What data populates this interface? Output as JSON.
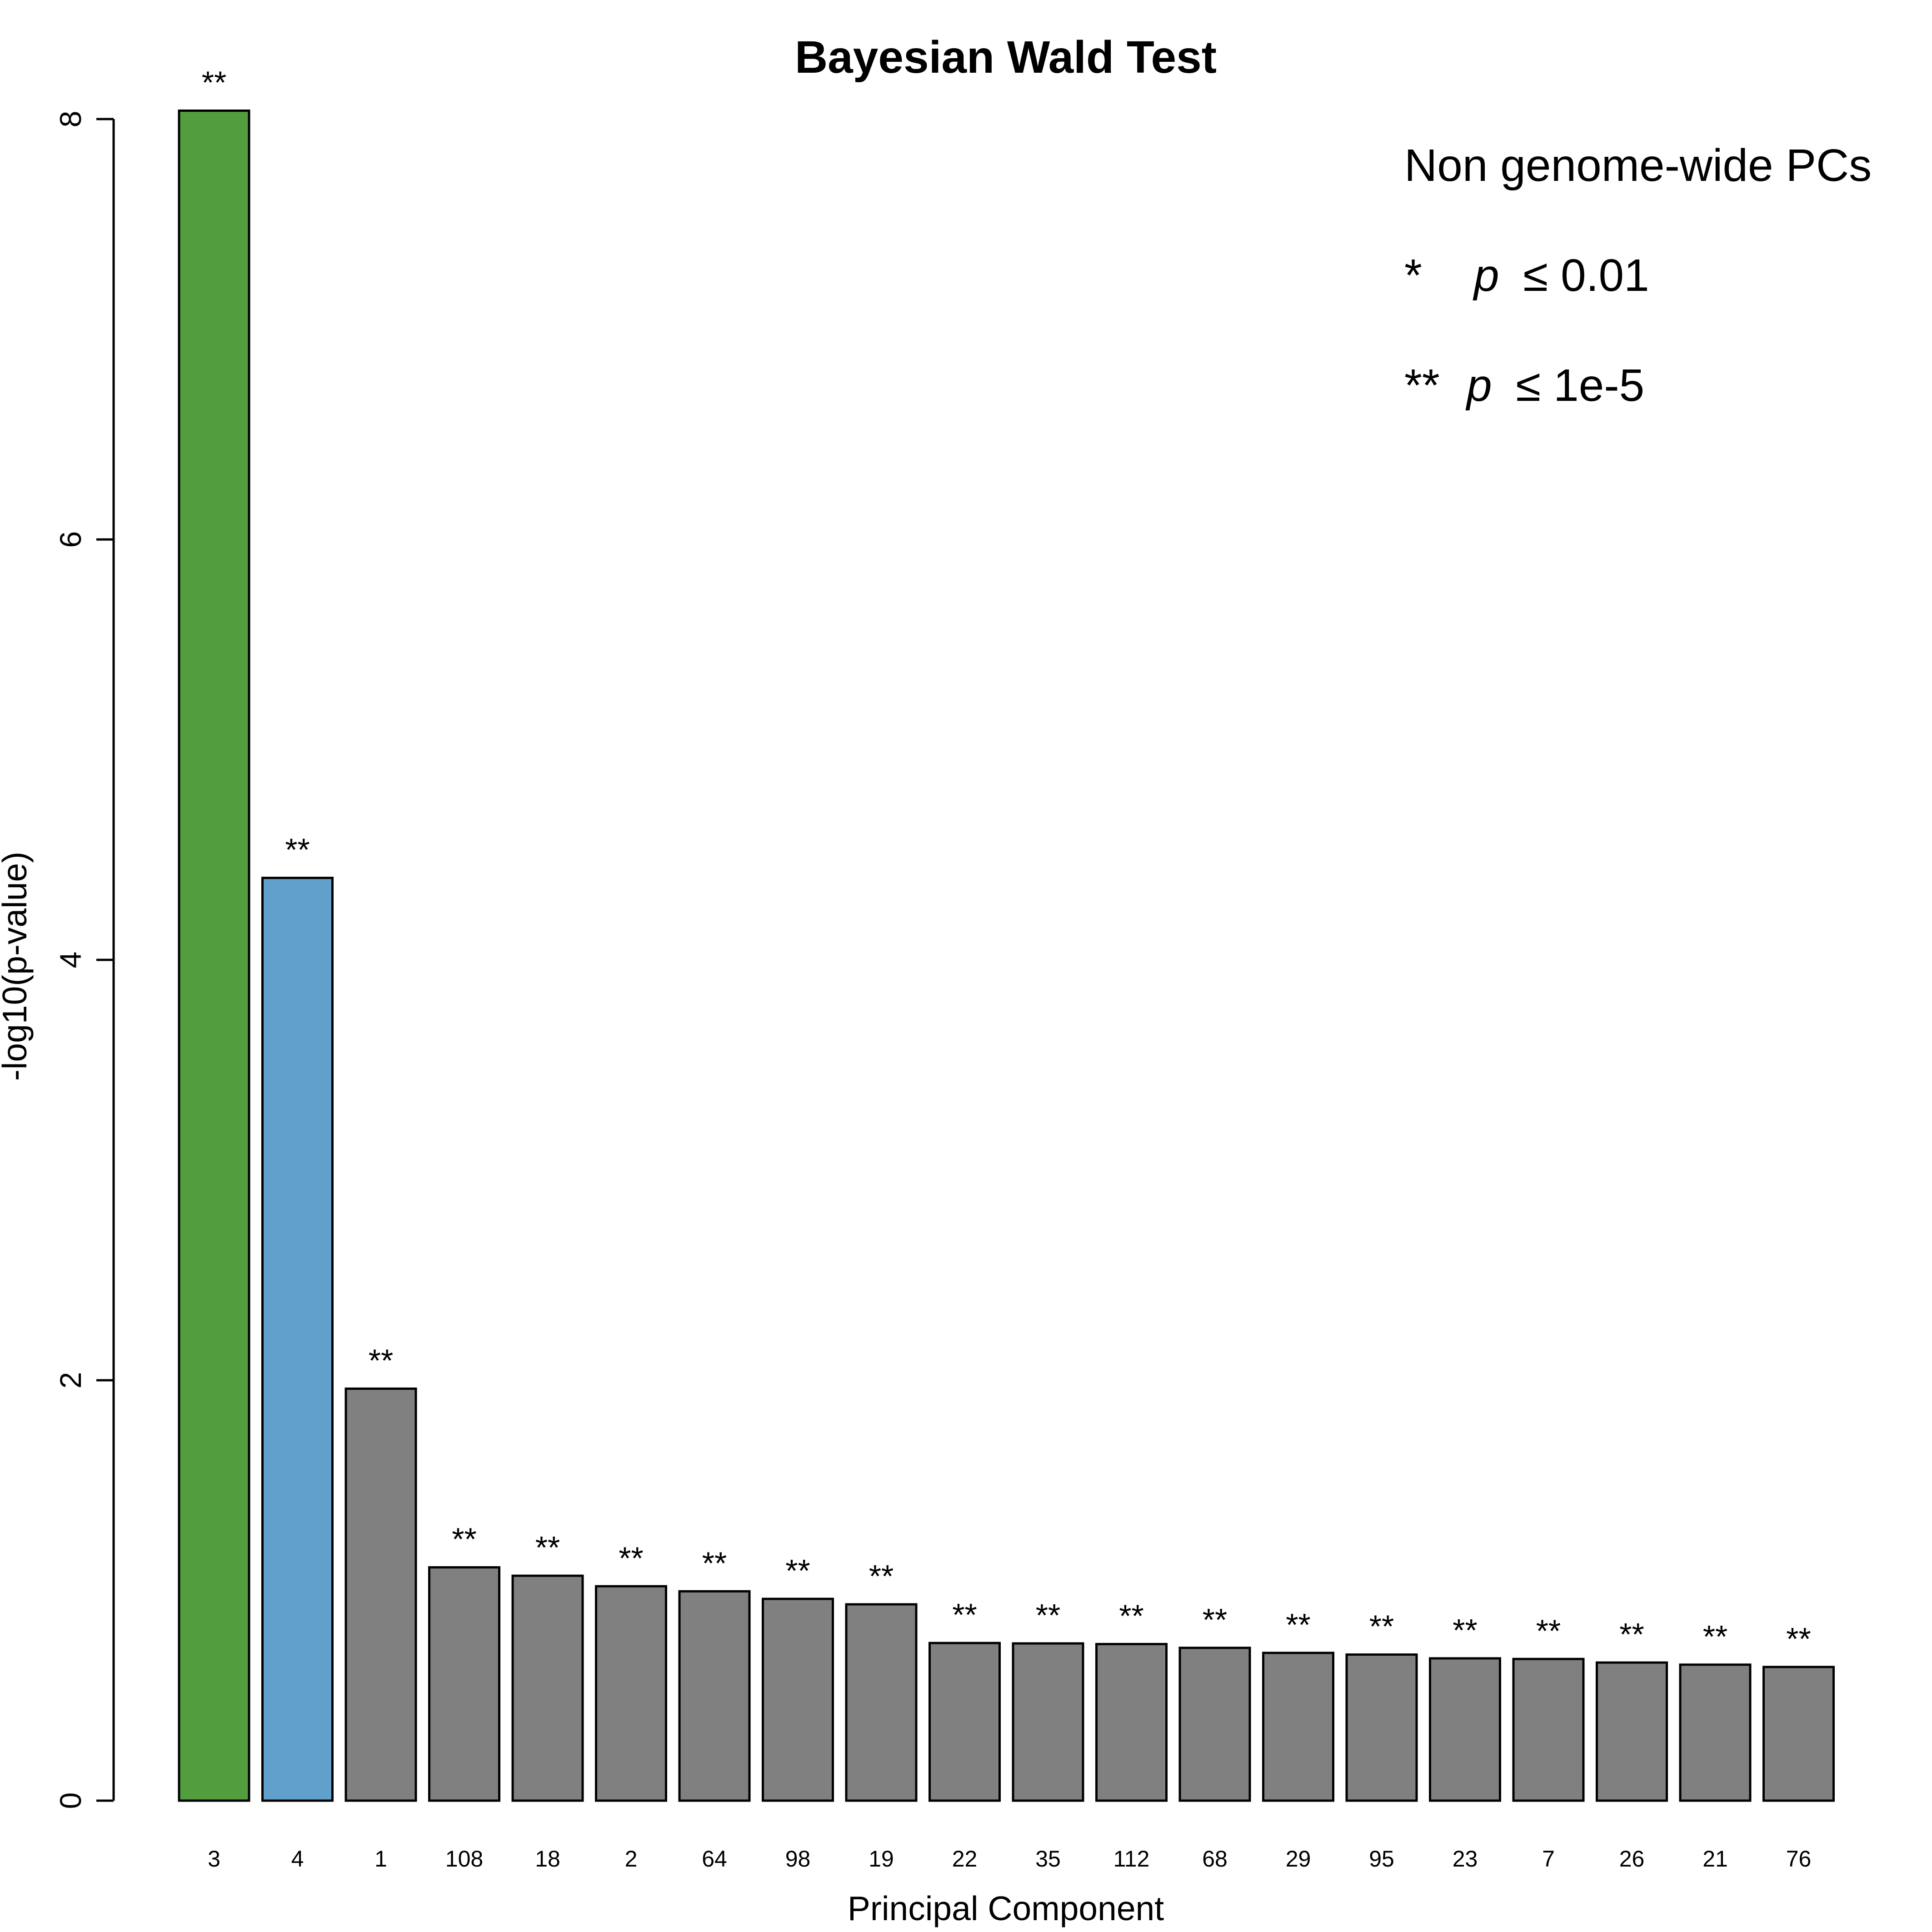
{
  "chart_data": {
    "type": "bar",
    "title": "Bayesian Wald Test",
    "xlabel": "Principal Component",
    "ylabel": "-log10(p-value)",
    "ylim": [
      0,
      8.1
    ],
    "yticks": [
      "0",
      "2",
      "4",
      "6",
      "8"
    ],
    "categories": [
      "3",
      "4",
      "1",
      "108",
      "18",
      "2",
      "64",
      "98",
      "19",
      "22",
      "35",
      "112",
      "68",
      "29",
      "95",
      "23",
      "7",
      "26",
      "21",
      "76"
    ],
    "values": [
      8.04,
      4.39,
      1.96,
      1.11,
      1.07,
      1.02,
      0.996,
      0.96,
      0.934,
      0.75,
      0.748,
      0.745,
      0.727,
      0.703,
      0.695,
      0.677,
      0.674,
      0.657,
      0.647,
      0.636
    ],
    "significance": [
      "**",
      "**",
      "**",
      "**",
      "**",
      "**",
      "**",
      "**",
      "**",
      "**",
      "**",
      "**",
      "**",
      "**",
      "**",
      "**",
      "**",
      "**",
      "**",
      "**"
    ],
    "colors": [
      "#529e3e",
      "#61a0ca",
      "#808080",
      "#808080",
      "#808080",
      "#808080",
      "#808080",
      "#808080",
      "#808080",
      "#808080",
      "#808080",
      "#808080",
      "#808080",
      "#808080",
      "#808080",
      "#808080",
      "#808080",
      "#808080",
      "#808080",
      "#808080"
    ],
    "grid": false,
    "legend": {
      "position": "top-right",
      "header": "Non genome-wide PCs",
      "entries": [
        {
          "symbol": "*",
          "p": "p",
          "threshold": "≤ 0.01"
        },
        {
          "symbol": "**",
          "p": "p",
          "threshold": "≤ 1e-5"
        }
      ]
    }
  }
}
